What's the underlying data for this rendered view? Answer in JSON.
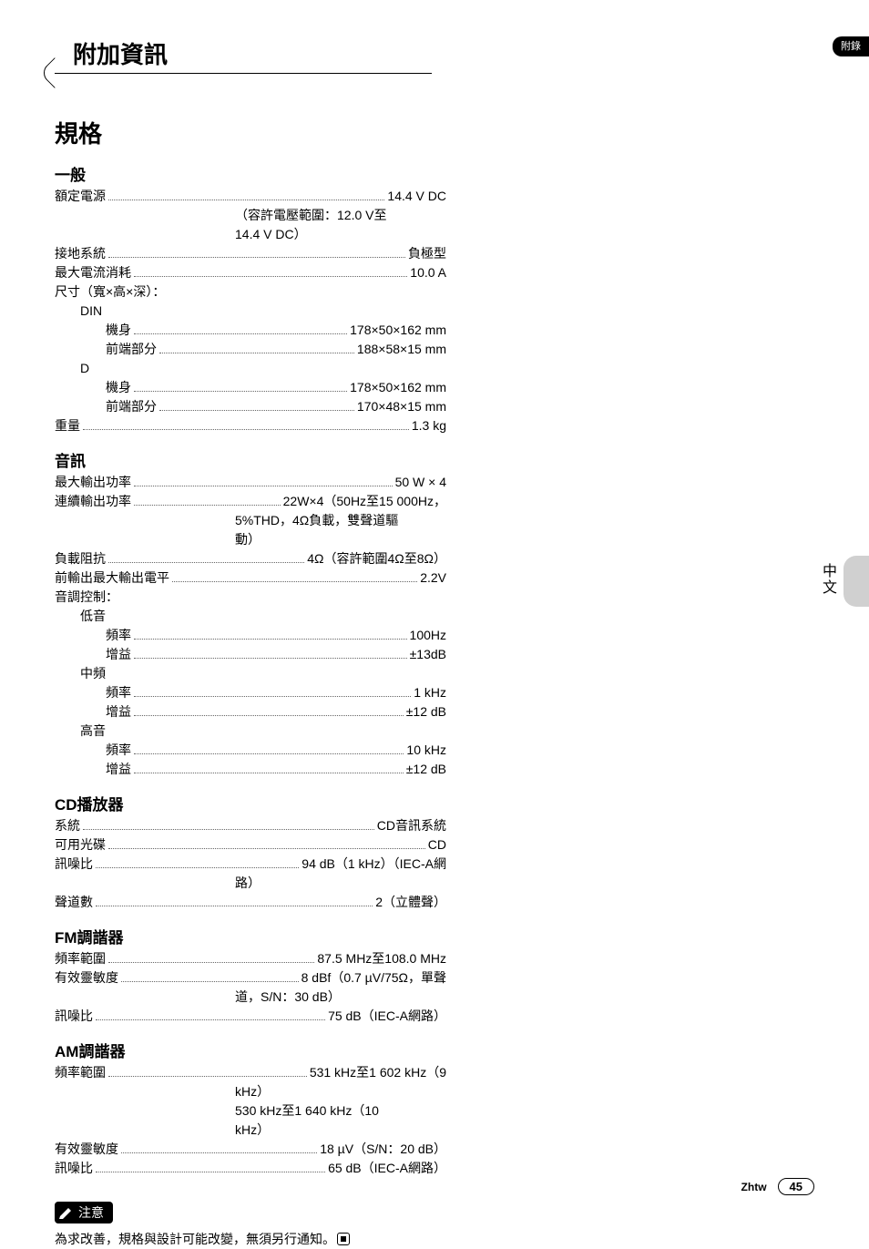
{
  "section_tab": "附錄",
  "side_label": "中文",
  "header_title": "附加資訊",
  "main_title": "規格",
  "footer": {
    "lang": "Zhtw",
    "page": "45"
  },
  "sections": [
    {
      "head": "一般",
      "lines": [
        {
          "t": "row",
          "label": "額定電源",
          "val": "14.4 V DC",
          "indent": 0
        },
        {
          "t": "cont",
          "val": "（容許電壓範圍：12.0 V至"
        },
        {
          "t": "cont",
          "val": "14.4 V DC）"
        },
        {
          "t": "row",
          "label": "接地系統",
          "val": "負極型",
          "indent": 0
        },
        {
          "t": "row",
          "label": "最大電流消耗",
          "val": "10.0 A",
          "indent": 0
        },
        {
          "t": "text",
          "val": "尺寸（寬×高×深）：",
          "indent": 0
        },
        {
          "t": "text",
          "val": "DIN",
          "indent": 1
        },
        {
          "t": "row",
          "label": "機身",
          "val": "178×50×162 mm",
          "indent": 2
        },
        {
          "t": "row",
          "label": "前端部分",
          "val": "188×58×15 mm",
          "indent": 2
        },
        {
          "t": "text",
          "val": "D",
          "indent": 1
        },
        {
          "t": "row",
          "label": "機身",
          "val": "178×50×162 mm",
          "indent": 2
        },
        {
          "t": "row",
          "label": "前端部分",
          "val": "170×48×15 mm",
          "indent": 2
        },
        {
          "t": "row",
          "label": "重量",
          "val": "1.3 kg",
          "indent": 0
        }
      ]
    },
    {
      "head": "音訊",
      "lines": [
        {
          "t": "row",
          "label": "最大輸出功率",
          "val": "50 W × 4",
          "indent": 0
        },
        {
          "t": "row",
          "label": "連續輸出功率",
          "val": "22W×4（50Hz至15 000Hz，",
          "indent": 0
        },
        {
          "t": "cont",
          "val": "5%THD，4Ω負載，雙聲道驅"
        },
        {
          "t": "cont",
          "val": "動）"
        },
        {
          "t": "row",
          "label": "負載阻抗",
          "val": "4Ω（容許範圍4Ω至8Ω）",
          "indent": 0
        },
        {
          "t": "row",
          "label": "前輸出最大輸出電平",
          "val": "2.2V",
          "indent": 0
        },
        {
          "t": "text",
          "val": "音調控制：",
          "indent": 0
        },
        {
          "t": "text",
          "val": "低音",
          "indent": 1
        },
        {
          "t": "row",
          "label": "頻率",
          "val": "100Hz",
          "indent": 2
        },
        {
          "t": "row",
          "label": "增益",
          "val": "±13dB",
          "indent": 2
        },
        {
          "t": "text",
          "val": "中頻",
          "indent": 1
        },
        {
          "t": "row",
          "label": "頻率",
          "val": "1 kHz",
          "indent": 2
        },
        {
          "t": "row",
          "label": "增益",
          "val": "±12 dB",
          "indent": 2
        },
        {
          "t": "text",
          "val": "高音",
          "indent": 1
        },
        {
          "t": "row",
          "label": "頻率",
          "val": "10 kHz",
          "indent": 2
        },
        {
          "t": "row",
          "label": "增益",
          "val": "±12 dB",
          "indent": 2
        }
      ]
    },
    {
      "head": "CD播放器",
      "lines": [
        {
          "t": "row",
          "label": "系統",
          "val": "CD音訊系統",
          "indent": 0
        },
        {
          "t": "row",
          "label": "可用光碟",
          "val": "CD",
          "indent": 0
        },
        {
          "t": "row",
          "label": "訊噪比",
          "val": "94 dB（1 kHz）（IEC-A網",
          "indent": 0
        },
        {
          "t": "cont",
          "val": "路）"
        },
        {
          "t": "row",
          "label": "聲道數",
          "val": "2（立體聲）",
          "indent": 0
        }
      ]
    },
    {
      "head": "FM調諧器",
      "lines": [
        {
          "t": "row",
          "label": "頻率範圍",
          "val": "87.5 MHz至108.0 MHz",
          "indent": 0
        },
        {
          "t": "row",
          "label": "有效靈敏度",
          "val": "8 dBf（0.7 µV/75Ω，單聲",
          "indent": 0
        },
        {
          "t": "cont",
          "val": "道，S/N：30 dB）"
        },
        {
          "t": "row",
          "label": "訊噪比",
          "val": "75 dB（IEC-A網路）",
          "indent": 0
        }
      ]
    },
    {
      "head": "AM調諧器",
      "lines": [
        {
          "t": "row",
          "label": "頻率範圍",
          "val": "531 kHz至1 602 kHz（9",
          "indent": 0
        },
        {
          "t": "cont",
          "val": "kHz）"
        },
        {
          "t": "cont",
          "val": "530 kHz至1 640 kHz（10"
        },
        {
          "t": "cont",
          "val": "kHz）"
        },
        {
          "t": "row",
          "label": "有效靈敏度",
          "val": "18 µV（S/N：20 dB）",
          "indent": 0
        },
        {
          "t": "row",
          "label": "訊噪比",
          "val": "65 dB（IEC-A網路）",
          "indent": 0
        }
      ]
    }
  ],
  "note": {
    "head": "注意",
    "body": "為求改善，規格與設計可能改變，無須另行通知。"
  }
}
